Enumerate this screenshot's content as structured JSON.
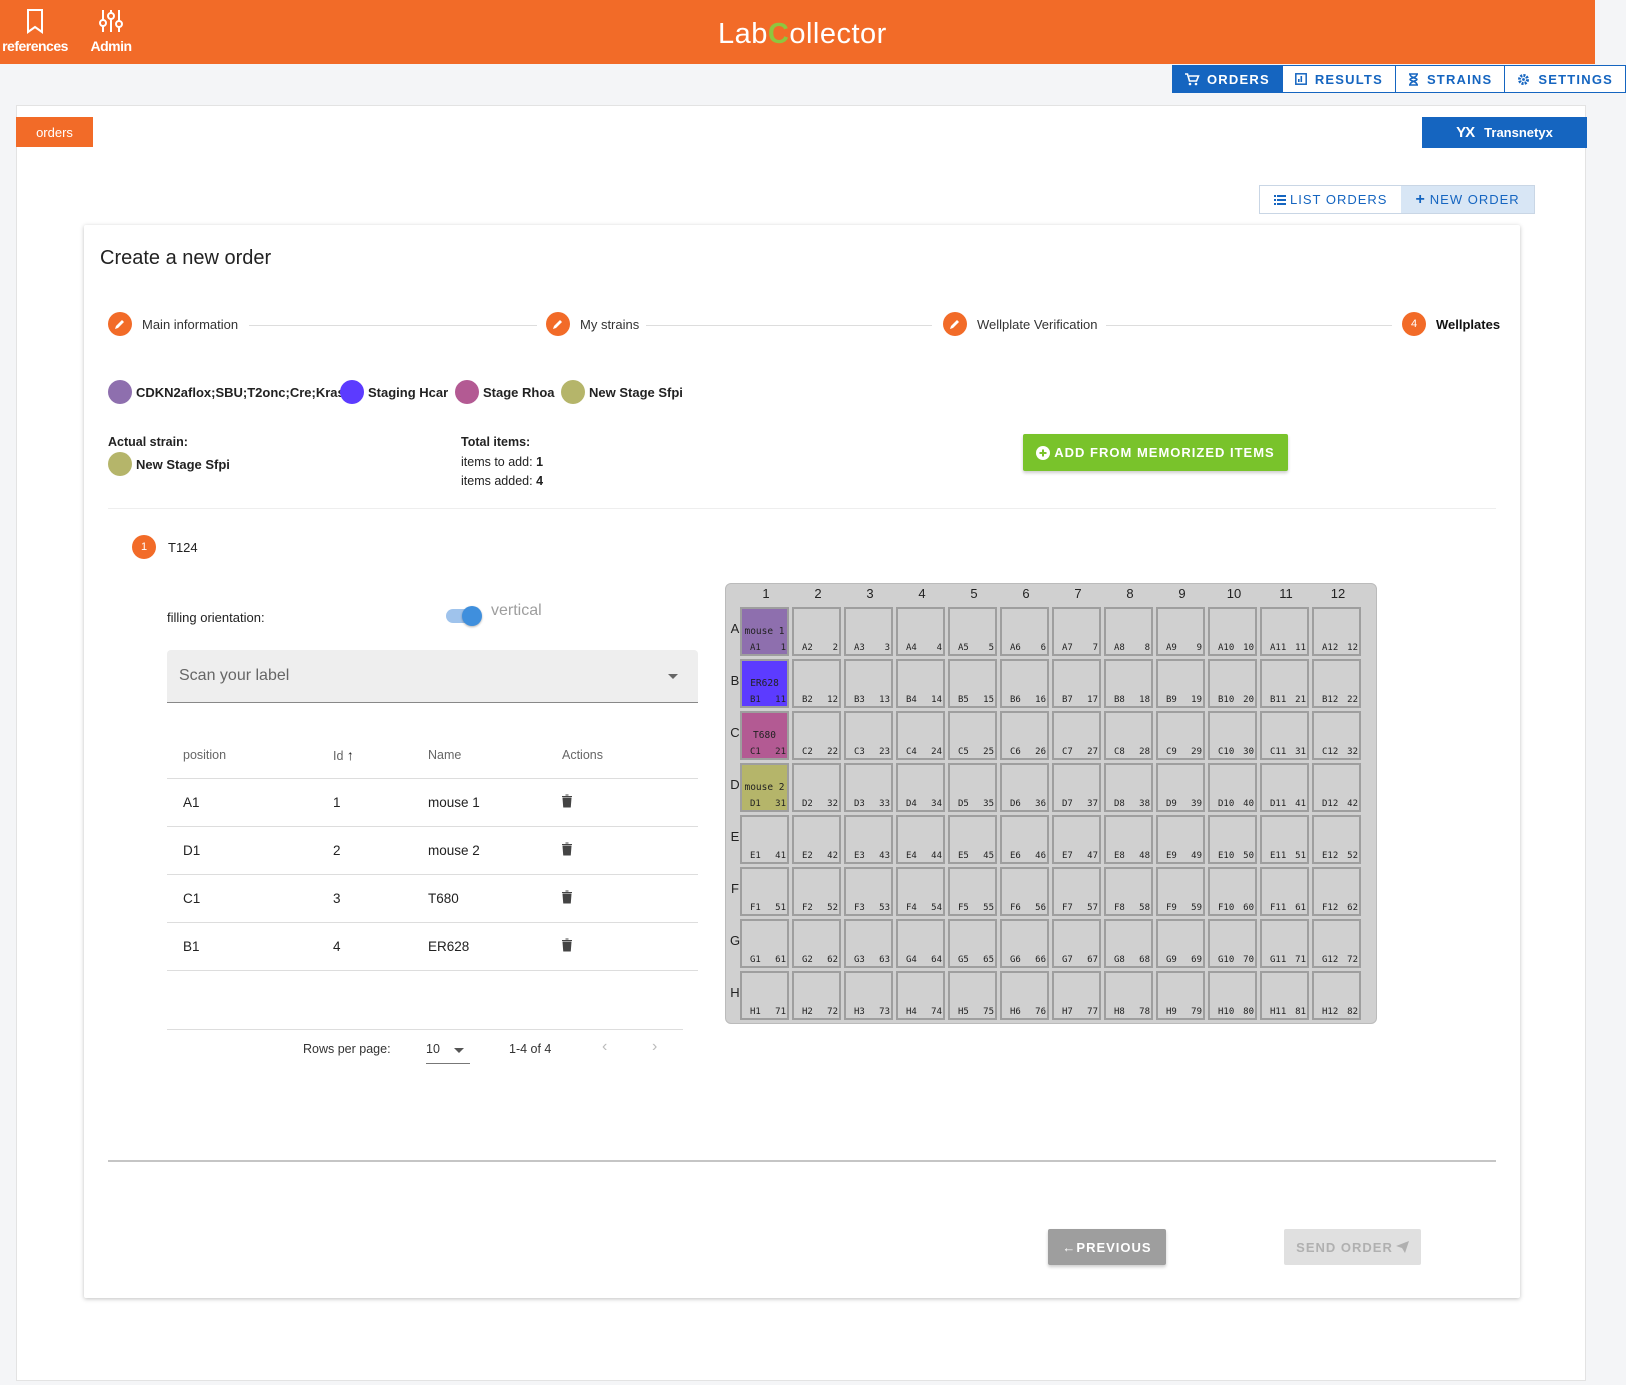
{
  "header": {
    "nav_left": [
      {
        "label": "references",
        "icon": "bookmark-icon"
      },
      {
        "label": "Admin",
        "icon": "sliders-icon"
      }
    ],
    "logo_text_1": "Lab",
    "logo_c": "C",
    "logo_text_2": "ollector"
  },
  "tabs": [
    {
      "label": "ORDERS",
      "icon": "cart-icon",
      "active": true
    },
    {
      "label": "RESULTS",
      "icon": "chart-icon",
      "active": false
    },
    {
      "label": "STRAINS",
      "icon": "hourglass-icon",
      "active": false
    },
    {
      "label": "SETTINGS",
      "icon": "gear-icon",
      "active": false
    }
  ],
  "badges": {
    "orders": "orders",
    "yx": "YX",
    "brand": "Transnetyx"
  },
  "list_buttons": {
    "list": "LIST ORDERS",
    "new": "NEW ORDER"
  },
  "card": {
    "title": "Create a new order"
  },
  "stepper": [
    {
      "label": "Main information",
      "icon": "pencil-icon"
    },
    {
      "label": "My strains",
      "icon": "pencil-icon"
    },
    {
      "label": "Wellplate Verification",
      "icon": "pencil-icon"
    },
    {
      "label": "Wellplates",
      "number": "4"
    }
  ],
  "legend": [
    {
      "label": "CDKN2aflox;SBU;T2onc;Cre;Kras",
      "color": "#8e6fae"
    },
    {
      "label": "Staging Hcar",
      "color": "#5c3bff"
    },
    {
      "label": "Stage Rhoa",
      "color": "#b35a93"
    },
    {
      "label": "New Stage Sfpi",
      "color": "#b5b56a"
    }
  ],
  "actual_strain": {
    "label": "Actual strain:",
    "name": "New Stage Sfpi",
    "color": "#b5b56a"
  },
  "totals": {
    "label": "Total items:",
    "to_add_label": "items to add:",
    "to_add": "1",
    "added_label": "items added:",
    "added": "4"
  },
  "add_memorized": "ADD FROM MEMORIZED ITEMS",
  "plate": {
    "number": "1",
    "name": "T124"
  },
  "filling": {
    "label": "filling orientation:",
    "value": "vertical"
  },
  "scan_placeholder": "Scan your label",
  "table": {
    "headers": [
      "position",
      "Id",
      "Name",
      "Actions"
    ],
    "rows": [
      {
        "position": "A1",
        "id": "1",
        "name": "mouse 1"
      },
      {
        "position": "D1",
        "id": "2",
        "name": "mouse 2"
      },
      {
        "position": "C1",
        "id": "3",
        "name": "T680"
      },
      {
        "position": "B1",
        "id": "4",
        "name": "ER628"
      }
    ]
  },
  "pager": {
    "rows_label": "Rows per page:",
    "rows_value": "10",
    "range": "1-4 of 4"
  },
  "wellplate": {
    "columns": [
      "1",
      "2",
      "3",
      "4",
      "5",
      "6",
      "7",
      "8",
      "9",
      "10",
      "11",
      "12"
    ],
    "rows": [
      "A",
      "B",
      "C",
      "D",
      "E",
      "F",
      "G",
      "H"
    ],
    "filled": {
      "A1": {
        "name": "mouse 1",
        "color": "#8e6fae"
      },
      "B1": {
        "name": "ER628",
        "color": "#5c3bff"
      },
      "C1": {
        "name": "T680",
        "color": "#b35a93"
      },
      "D1": {
        "name": "mouse 2",
        "color": "#b5b56a"
      }
    }
  },
  "buttons": {
    "previous": "PREVIOUS",
    "send": "SEND ORDER"
  }
}
